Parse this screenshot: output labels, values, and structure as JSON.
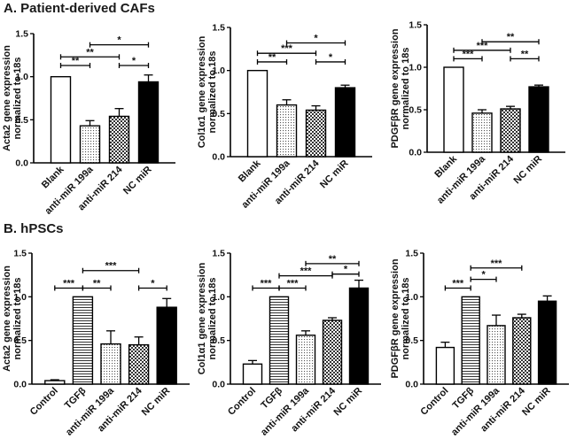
{
  "sections": [
    {
      "label": "A. Patient-derived CAFs"
    },
    {
      "label": "B. hPSCs"
    }
  ],
  "chart_data": [
    {
      "type": "bar",
      "section": "A",
      "ylabel_line1": "Acta2 gene expression",
      "ylabel_line2": "normalized to 18s",
      "ylim": [
        0,
        1.5
      ],
      "ytick_step": 0.5,
      "categories": [
        "Blank",
        "anti-miR 199a",
        "anti-miR 214",
        "NC miR"
      ],
      "values": [
        1.0,
        0.43,
        0.54,
        0.94
      ],
      "errors": [
        0,
        0.06,
        0.09,
        0.08
      ],
      "fills": [
        "white",
        "dots",
        "checker",
        "black"
      ],
      "brackets": [
        {
          "from": 0,
          "to": 1,
          "label": "**",
          "y": 1.13
        },
        {
          "from": 0,
          "to": 2,
          "label": "**",
          "y": 1.23
        },
        {
          "from": 1,
          "to": 3,
          "label": "*",
          "y": 1.37
        },
        {
          "from": 2,
          "to": 3,
          "label": "*",
          "y": 1.13
        }
      ]
    },
    {
      "type": "bar",
      "section": "A",
      "ylabel_line1": "Col1α1 gene expression",
      "ylabel_line2": "normalized to 18s",
      "ylim": [
        0,
        1.5
      ],
      "ytick_step": 0.5,
      "categories": [
        "Blank",
        "anti-miR 199a",
        "anti-miR 214",
        "NC miR"
      ],
      "values": [
        1.0,
        0.6,
        0.54,
        0.8
      ],
      "errors": [
        0,
        0.06,
        0.05,
        0.03
      ],
      "fills": [
        "white",
        "dots",
        "checker",
        "black"
      ],
      "brackets": [
        {
          "from": 0,
          "to": 1,
          "label": "**",
          "y": 1.1
        },
        {
          "from": 0,
          "to": 2,
          "label": "***",
          "y": 1.2
        },
        {
          "from": 1,
          "to": 3,
          "label": "*",
          "y": 1.32
        },
        {
          "from": 2,
          "to": 3,
          "label": "*",
          "y": 1.1
        }
      ]
    },
    {
      "type": "bar",
      "section": "A",
      "ylabel_line1": "PDGFβR gene expression",
      "ylabel_line2": "normalized to 18s",
      "ylim": [
        0,
        1.5
      ],
      "ytick_step": 0.5,
      "categories": [
        "Blank",
        "anti-miR 199a",
        "anti-miR 214",
        "NC miR"
      ],
      "values": [
        1.0,
        0.46,
        0.51,
        0.77
      ],
      "errors": [
        0,
        0.04,
        0.03,
        0.02
      ],
      "fills": [
        "white",
        "dots",
        "checker",
        "black"
      ],
      "brackets": [
        {
          "from": 0,
          "to": 1,
          "label": "***",
          "y": 1.1
        },
        {
          "from": 0,
          "to": 2,
          "label": "***",
          "y": 1.2
        },
        {
          "from": 1,
          "to": 3,
          "label": "**",
          "y": 1.3
        },
        {
          "from": 2,
          "to": 3,
          "label": "**",
          "y": 1.1
        }
      ]
    },
    {
      "type": "bar",
      "section": "B",
      "ylabel_line1": "Acta2 gene expression",
      "ylabel_line2": "normalized to 18s",
      "ylim": [
        0,
        1.5
      ],
      "ytick_step": 0.5,
      "categories": [
        "Control",
        "TGFβ",
        "anti-miR 199a",
        "anti-miR 214",
        "NC miR"
      ],
      "values": [
        0.04,
        1.0,
        0.46,
        0.45,
        0.88
      ],
      "errors": [
        0.01,
        0,
        0.15,
        0.09,
        0.1
      ],
      "fills": [
        "white",
        "hlines",
        "dots",
        "checker",
        "black"
      ],
      "brackets": [
        {
          "from": 0,
          "to": 1,
          "label": "***",
          "y": 1.1
        },
        {
          "from": 1,
          "to": 2,
          "label": "**",
          "y": 1.1
        },
        {
          "from": 1,
          "to": 3,
          "label": "***",
          "y": 1.3
        },
        {
          "from": 3,
          "to": 4,
          "label": "*",
          "y": 1.1
        }
      ]
    },
    {
      "type": "bar",
      "section": "B",
      "ylabel_line1": "Col1α1 gene expression",
      "ylabel_line2": "normalized to 18s",
      "ylim": [
        0,
        1.5
      ],
      "ytick_step": 0.5,
      "categories": [
        "Control",
        "TGFβ",
        "anti-miR 199a",
        "anti-miR 214",
        "NC miR"
      ],
      "values": [
        0.23,
        1.0,
        0.56,
        0.73,
        1.1
      ],
      "errors": [
        0.04,
        0,
        0.05,
        0.03,
        0.09
      ],
      "fills": [
        "white",
        "hlines",
        "dots",
        "checker",
        "black"
      ],
      "brackets": [
        {
          "from": 0,
          "to": 1,
          "label": "***",
          "y": 1.1
        },
        {
          "from": 1,
          "to": 2,
          "label": "***",
          "y": 1.1
        },
        {
          "from": 1,
          "to": 3,
          "label": "***",
          "y": 1.24
        },
        {
          "from": 2,
          "to": 4,
          "label": "**",
          "y": 1.38
        },
        {
          "from": 3,
          "to": 4,
          "label": "*",
          "y": 1.26
        }
      ]
    },
    {
      "type": "bar",
      "section": "B",
      "ylabel_line1": "PDGFβR gene expression",
      "ylabel_line2": "normalized to 18s",
      "ylim": [
        0,
        1.5
      ],
      "ytick_step": 0.5,
      "categories": [
        "Control",
        "TGFβ",
        "anti-miR 199a",
        "anti-miR 214",
        "NC miR"
      ],
      "values": [
        0.42,
        1.0,
        0.67,
        0.76,
        0.95
      ],
      "errors": [
        0.06,
        0,
        0.12,
        0.04,
        0.06
      ],
      "fills": [
        "white",
        "hlines",
        "dots",
        "checker",
        "black"
      ],
      "brackets": [
        {
          "from": 0,
          "to": 1,
          "label": "***",
          "y": 1.1
        },
        {
          "from": 1,
          "to": 2,
          "label": "*",
          "y": 1.2
        },
        {
          "from": 1,
          "to": 3,
          "label": "***",
          "y": 1.33
        }
      ]
    }
  ]
}
